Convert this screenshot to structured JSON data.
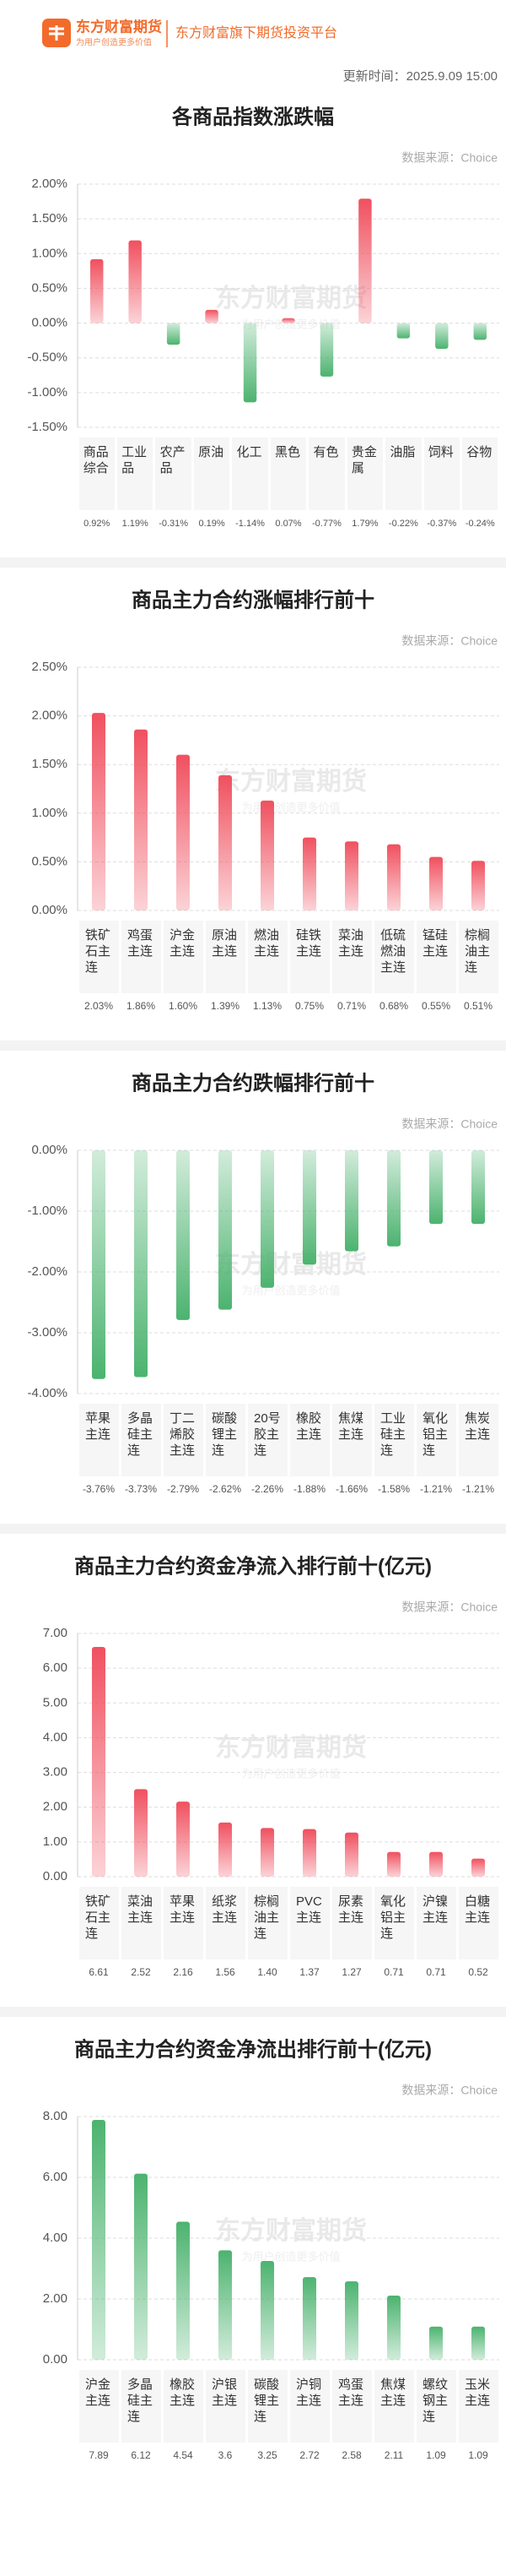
{
  "header": {
    "brand": "东方财富期货",
    "slogan": "为用户创造更多价值",
    "platform": "东方财富旗下期货投资平台",
    "update_time": "更新时间：2025.9.09 15:00"
  },
  "watermark": {
    "brand": "东方财富期货",
    "slogan": "为用户创造更多价值"
  },
  "chart_data": [
    {
      "type": "bar",
      "title": "各商品指数涨跌幅",
      "source": "数据来源：Choice",
      "categories": [
        "商品综合",
        "工业品",
        "农产品",
        "原油",
        "化工",
        "黑色",
        "有色",
        "贵金属",
        "油脂",
        "饲料",
        "谷物"
      ],
      "values": [
        0.92,
        1.19,
        -0.31,
        0.19,
        -1.14,
        0.07,
        -0.77,
        1.79,
        -0.22,
        -0.37,
        -0.24
      ],
      "value_labels": [
        "0.92%",
        "1.19%",
        "-0.31%",
        "0.19%",
        "-1.14%",
        "0.07%",
        "-0.77%",
        "1.79%",
        "-0.22%",
        "-0.37%",
        "-0.24%"
      ],
      "color": "#f0505f",
      "negative_color": "#4cb36f",
      "ylim": [
        -1.5,
        2.0
      ],
      "yticks": [
        {
          "value": 2.0,
          "label": "2.00%"
        },
        {
          "value": 1.5,
          "label": "1.50%"
        },
        {
          "value": 1.0,
          "label": "1.00%"
        },
        {
          "value": 0.5,
          "label": "0.50%"
        },
        {
          "value": 0,
          "label": "0.00%"
        },
        {
          "value": -0.5,
          "label": "-0.50%"
        },
        {
          "value": -1.0,
          "label": "-1.00%"
        },
        {
          "value": -1.5,
          "label": "-1.50%"
        }
      ],
      "grid": true
    },
    {
      "type": "bar",
      "title": "商品主力合约涨幅排行前十",
      "source": "数据来源：Choice",
      "categories": [
        "铁矿石主连",
        "鸡蛋主连",
        "沪金主连",
        "原油主连",
        "燃油主连",
        "硅铁主连",
        "菜油主连",
        "低硫燃油主连",
        "锰硅主连",
        "棕榈油主连"
      ],
      "values": [
        2.03,
        1.86,
        1.6,
        1.39,
        1.13,
        0.75,
        0.71,
        0.68,
        0.55,
        0.51
      ],
      "value_labels": [
        "2.03%",
        "1.86%",
        "1.60%",
        "1.39%",
        "1.13%",
        "0.75%",
        "0.71%",
        "0.68%",
        "0.55%",
        "0.51%"
      ],
      "color": "#f0505f",
      "ylim": [
        0,
        2.5
      ],
      "yticks": [
        {
          "value": 2.5,
          "label": "2.50%"
        },
        {
          "value": 2.0,
          "label": "2.00%"
        },
        {
          "value": 1.5,
          "label": "1.50%"
        },
        {
          "value": 1.0,
          "label": "1.00%"
        },
        {
          "value": 0.5,
          "label": "0.50%"
        },
        {
          "value": 0,
          "label": "0.00%"
        }
      ],
      "grid": true
    },
    {
      "type": "bar",
      "title": "商品主力合约跌幅排行前十",
      "source": "数据来源：Choice",
      "categories": [
        "苹果主连",
        "多晶硅主连",
        "丁二烯胶主连",
        "碳酸锂主连",
        "20号胶主连",
        "橡胶主连",
        "焦煤主连",
        "工业硅主连",
        "氧化铝主连",
        "焦炭主连"
      ],
      "values": [
        -3.76,
        -3.73,
        -2.79,
        -2.62,
        -2.26,
        -1.88,
        -1.66,
        -1.58,
        -1.21,
        -1.21
      ],
      "value_labels": [
        "-3.76%",
        "-3.73%",
        "-2.79%",
        "-2.62%",
        "-2.26%",
        "-1.88%",
        "-1.66%",
        "-1.58%",
        "-1.21%",
        "-1.21%"
      ],
      "color": "#4cb36f",
      "ylim": [
        -4.0,
        0
      ],
      "yticks": [
        {
          "value": 0,
          "label": "0.00%"
        },
        {
          "value": -1.0,
          "label": "-1.00%"
        },
        {
          "value": -2.0,
          "label": "-2.00%"
        },
        {
          "value": -3.0,
          "label": "-3.00%"
        },
        {
          "value": -4.0,
          "label": "-4.00%"
        }
      ],
      "grid": true
    },
    {
      "type": "bar",
      "title": "商品主力合约资金净流入排行前十(亿元)",
      "source": "数据来源：Choice",
      "categories": [
        "铁矿石主连",
        "菜油主连",
        "苹果主连",
        "纸浆主连",
        "棕榈油主连",
        "PVC主连",
        "尿素主连",
        "氧化铝主连",
        "沪镍主连",
        "白糖主连"
      ],
      "values": [
        6.61,
        2.52,
        2.16,
        1.56,
        1.4,
        1.37,
        1.27,
        0.71,
        0.71,
        0.52
      ],
      "value_labels": [
        "6.61",
        "2.52",
        "2.16",
        "1.56",
        "1.40",
        "1.37",
        "1.27",
        "0.71",
        "0.71",
        "0.52"
      ],
      "color": "#f0505f",
      "ylim": [
        0,
        7
      ],
      "yticks": [
        {
          "value": 7,
          "label": "7.00"
        },
        {
          "value": 6,
          "label": "6.00"
        },
        {
          "value": 5,
          "label": "5.00"
        },
        {
          "value": 4,
          "label": "4.00"
        },
        {
          "value": 3,
          "label": "3.00"
        },
        {
          "value": 2,
          "label": "2.00"
        },
        {
          "value": 1,
          "label": "1.00"
        },
        {
          "value": 0,
          "label": "0.00"
        }
      ],
      "grid": true
    },
    {
      "type": "bar",
      "title": "商品主力合约资金净流出排行前十(亿元)",
      "source": "数据来源：Choice",
      "categories": [
        "沪金主连",
        "多晶硅主连",
        "橡胶主连",
        "沪银主连",
        "碳酸锂主连",
        "沪铜主连",
        "鸡蛋主连",
        "焦煤主连",
        "螺纹钢主连",
        "玉米主连"
      ],
      "values": [
        7.89,
        6.12,
        4.54,
        3.6,
        3.25,
        2.72,
        2.58,
        2.11,
        1.09,
        1.09
      ],
      "color": "#4cb36f",
      "ylim": [
        0,
        8
      ],
      "yticks": [
        {
          "value": 8,
          "label": "8.00"
        },
        {
          "value": 6,
          "label": "6.00"
        },
        {
          "value": 4,
          "label": "4.00"
        },
        {
          "value": 2,
          "label": "2.00"
        },
        {
          "value": 0,
          "label": "0.00"
        }
      ],
      "grid": true
    }
  ]
}
